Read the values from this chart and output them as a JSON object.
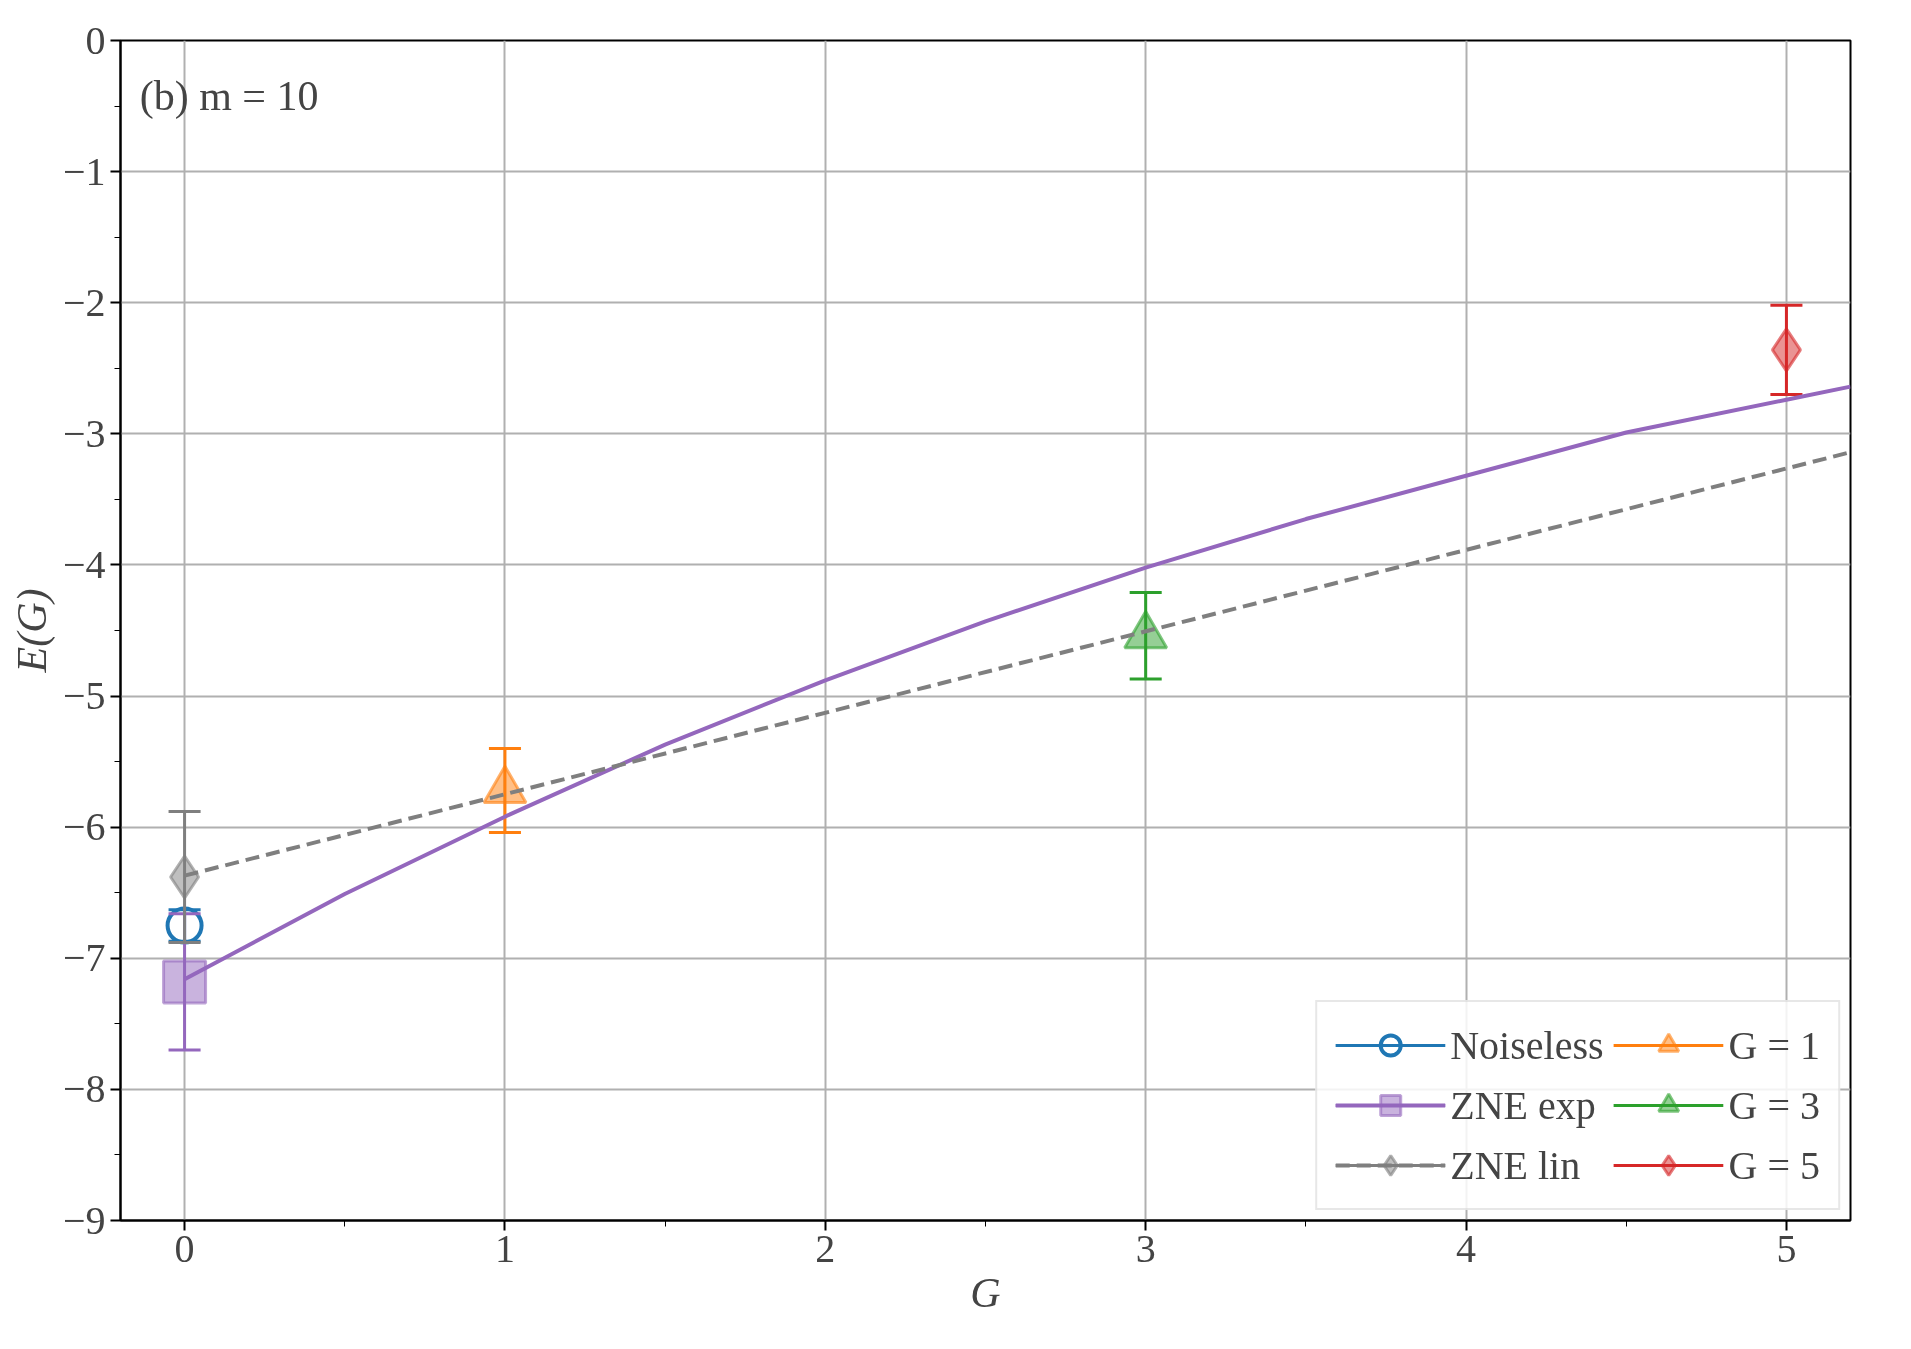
{
  "chart_data": {
    "type": "scatter",
    "xlabel": "G",
    "ylabel": "E(G)",
    "annotations": [
      "(b) m = 10"
    ],
    "xlim": [
      -0.2,
      5.2
    ],
    "xticks": [
      0,
      1,
      2,
      3,
      4,
      5
    ],
    "ylim": [
      -9,
      0
    ],
    "yticks": [
      {
        "value": -9,
        "label": "−9"
      },
      {
        "value": -8,
        "label": "−8"
      },
      {
        "value": -7,
        "label": "−7"
      },
      {
        "value": -6,
        "label": "−6"
      },
      {
        "value": -5,
        "label": "−5"
      },
      {
        "value": -4,
        "label": "−4"
      },
      {
        "value": -3,
        "label": "−3"
      },
      {
        "value": -2,
        "label": "−2"
      },
      {
        "value": -1,
        "label": "−1"
      },
      0
    ],
    "grid": true,
    "legend": "bottom right",
    "series": [
      {
        "name": "Noiseless",
        "marker": "circle",
        "color": "#1f77b4",
        "x": [
          0
        ],
        "values": [
          -6.75
        ],
        "errors": [
          0.12
        ]
      },
      {
        "name": "ZNE exp",
        "marker": "square",
        "color": "#9467bd",
        "x": [
          0
        ],
        "values": [
          -7.18
        ],
        "errors": [
          0.52
        ]
      },
      {
        "name": "ZNE lin",
        "marker": "diamond",
        "color": "#7f7f7f",
        "x": [
          0
        ],
        "values": [
          -6.38
        ],
        "errors": [
          0.5
        ]
      },
      {
        "name": "G = 1",
        "marker": "triangle",
        "color": "#ff7f0e",
        "x": [
          1
        ],
        "values": [
          -5.72
        ],
        "errors": [
          0.32
        ]
      },
      {
        "name": "G = 3",
        "marker": "triangle",
        "color": "#2ca02c",
        "x": [
          3
        ],
        "values": [
          -4.54
        ],
        "errors": [
          0.33
        ]
      },
      {
        "name": "G = 5",
        "marker": "diamond",
        "color": "#d62728",
        "x": [
          5
        ],
        "values": [
          -2.36
        ],
        "errors": [
          0.34
        ]
      },
      {
        "type": "line",
        "line_style": "solid",
        "color": "#9467bd",
        "x": [
          0,
          0.5,
          1,
          1.5,
          2,
          2.5,
          3,
          3.5,
          4,
          4.5,
          5,
          5.2
        ],
        "values": [
          -7.16,
          -6.51,
          -5.92,
          -5.37,
          -4.88,
          -4.43,
          -4.02,
          -3.65,
          -3.32,
          -2.99,
          -2.74,
          -2.64
        ]
      },
      {
        "type": "line",
        "line_style": "dashed",
        "color": "#7f7f7f",
        "x": [
          0,
          5.2
        ],
        "values": [
          -6.37,
          -3.14
        ]
      }
    ]
  }
}
